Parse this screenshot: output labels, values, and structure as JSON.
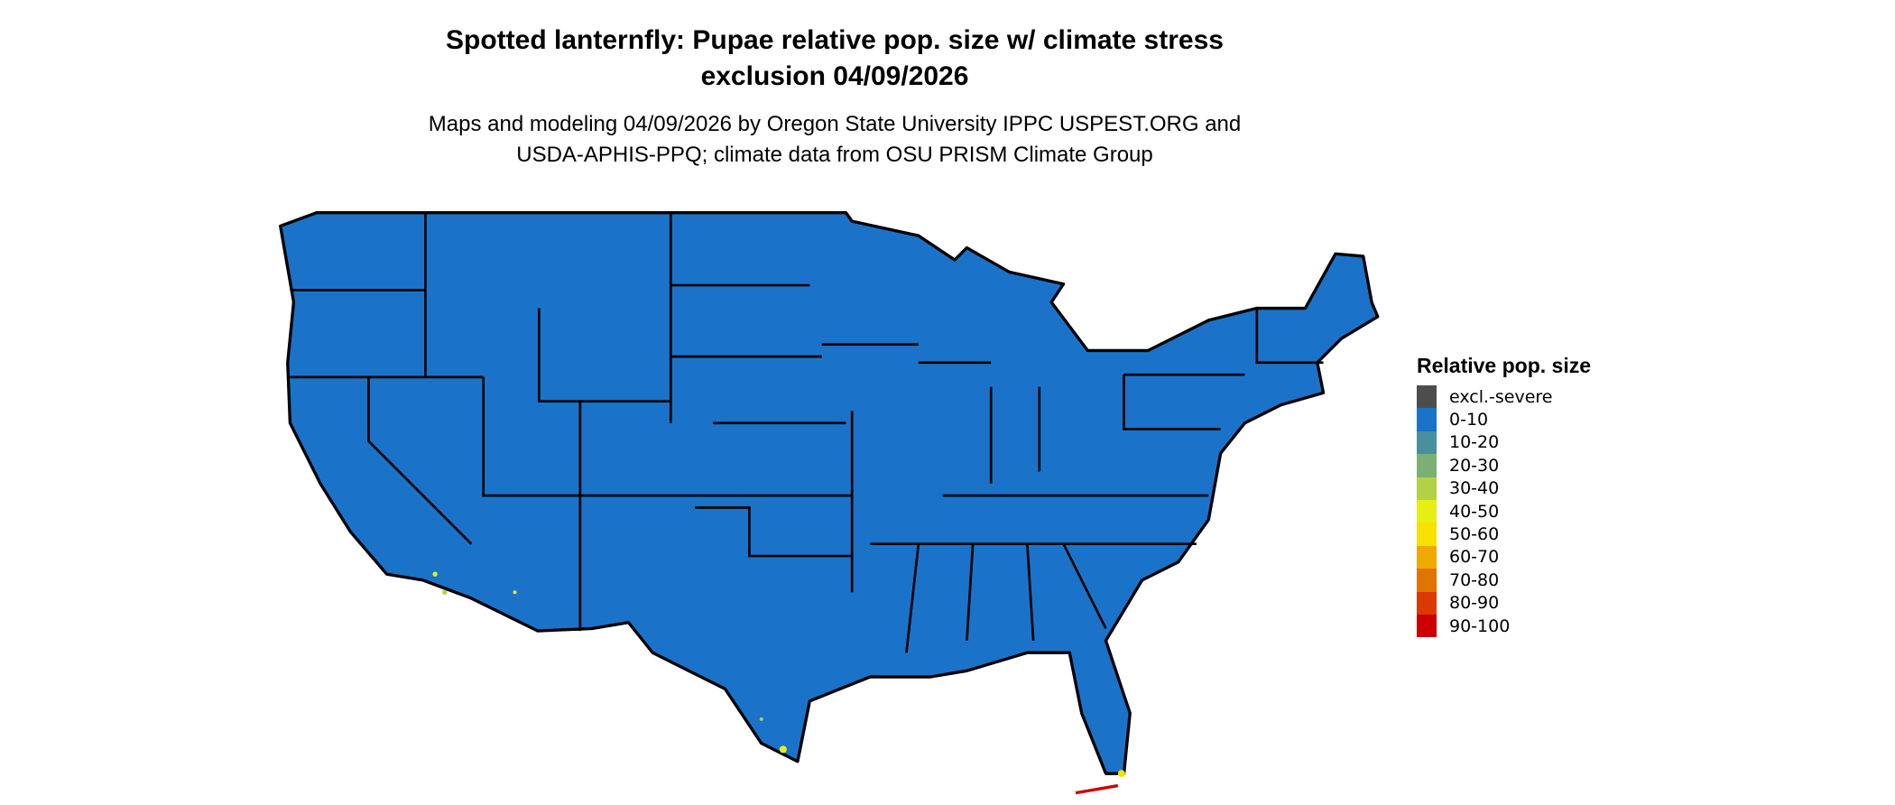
{
  "title_line1": "Spotted lanternfly: Pupae relative pop. size w/ climate stress",
  "title_line2": "exclusion 04/09/2026",
  "subtitle_line1": "Maps and modeling 04/09/2026 by Oregon State University IPPC USPEST.ORG and",
  "subtitle_line2": "USDA-APHIS-PPQ; climate data from OSU PRISM Climate Group",
  "map": {
    "region": "Contiguous United States",
    "dominant_class": "0-10",
    "land_color": "#1a73c9",
    "border_color": "#000000"
  },
  "legend": {
    "title": "Relative pop. size",
    "items": [
      {
        "label": "excl.-severe",
        "color": "#4d4d4d"
      },
      {
        "label": "0-10",
        "color": "#1a73c9"
      },
      {
        "label": "10-20",
        "color": "#48909c"
      },
      {
        "label": "20-30",
        "color": "#7caf73"
      },
      {
        "label": "30-40",
        "color": "#b2d145"
      },
      {
        "label": "40-50",
        "color": "#e6ef14"
      },
      {
        "label": "50-60",
        "color": "#f7e100"
      },
      {
        "label": "60-70",
        "color": "#eeaa00"
      },
      {
        "label": "70-80",
        "color": "#e27300"
      },
      {
        "label": "80-90",
        "color": "#db3900"
      },
      {
        "label": "90-100",
        "color": "#cc0000"
      }
    ]
  }
}
